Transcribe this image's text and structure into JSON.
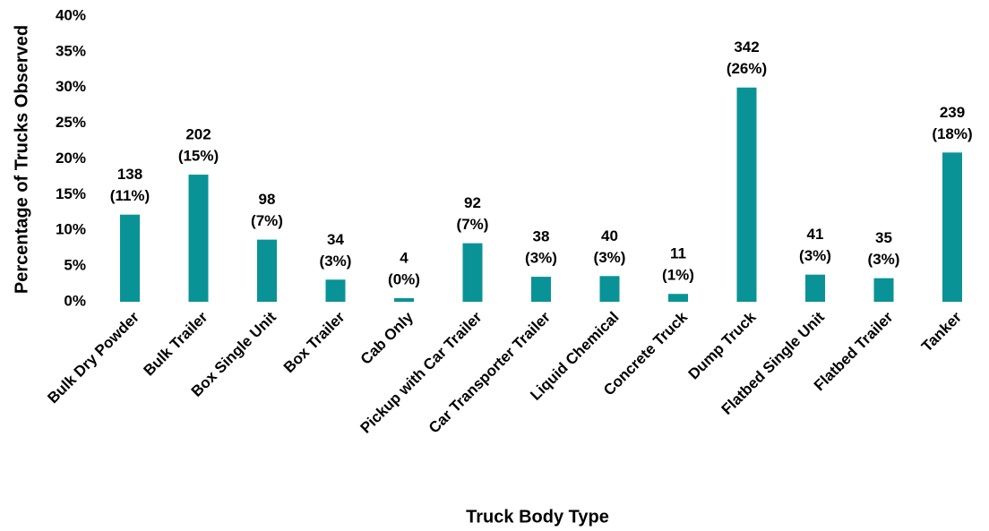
{
  "chart_data": {
    "type": "bar",
    "x_label": "Truck Body Type",
    "y_label": "Percentage of Trucks Observed",
    "categories": [
      "Bulk Dry Powder",
      "Bulk Trailer",
      "Box Single Unit",
      "Box Trailer",
      "Cab Only",
      "Pickup with Car Trailer",
      "Car Transporter Trailer",
      "Liquid Chemical",
      "Concrete Truck",
      "Dump Truck",
      "Flatbed Single Unit",
      "Flatbed Trailer",
      "Tanker"
    ],
    "values": [
      12.2,
      17.8,
      8.7,
      3.1,
      0.5,
      8.2,
      3.5,
      3.6,
      1.1,
      30,
      3.8,
      3.3,
      20.9
    ],
    "data_labels": [
      [
        "138",
        "(11%)"
      ],
      [
        "202",
        "(15%)"
      ],
      [
        "98",
        "(7%)"
      ],
      [
        "34",
        "(3%)"
      ],
      [
        "4",
        "(0%)"
      ],
      [
        "92",
        "(7%)"
      ],
      [
        "38",
        "(3%)"
      ],
      [
        "40",
        "(3%)"
      ],
      [
        "11",
        "(1%)"
      ],
      [
        "342",
        "(26%)"
      ],
      [
        "41",
        "(3%)"
      ],
      [
        "35",
        "(3%)"
      ],
      [
        "239",
        "(18%)"
      ]
    ],
    "color": "#0a9396",
    "ylim": [
      0,
      40
    ],
    "yticks": [
      {
        "value": 0,
        "label": "0%"
      },
      {
        "value": 5,
        "label": "5%"
      },
      {
        "value": 10,
        "label": "10%"
      },
      {
        "value": 15,
        "label": "15%"
      },
      {
        "value": 20,
        "label": "20%"
      },
      {
        "value": 25,
        "label": "25%"
      },
      {
        "value": 30,
        "label": "30%"
      },
      {
        "value": 35,
        "label": "35%"
      },
      {
        "value": 40,
        "label": "40%"
      }
    ],
    "grid": false
  }
}
